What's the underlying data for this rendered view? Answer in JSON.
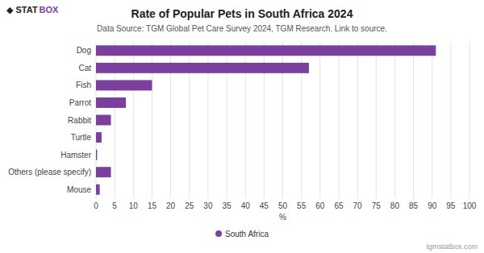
{
  "chart_data": {
    "type": "bar",
    "orientation": "horizontal",
    "title": "Rate of Popular Pets in South Africa 2024",
    "subtitle": "Data Source: TGM Global Pet Care Survey 2024, TGM Research. Link to source.",
    "categories": [
      "Dog",
      "Cat",
      "Fish",
      "Parrot",
      "Rabbit",
      "Turtle",
      "Hamster",
      "Others (please specify)",
      "Mouse"
    ],
    "series": [
      {
        "name": "South Africa",
        "color": "#7b3f9e",
        "values": [
          91,
          57,
          15,
          8,
          4,
          1.5,
          0.3,
          4,
          1
        ]
      }
    ],
    "x_label": "%",
    "xlim": [
      0,
      100
    ],
    "xticks": [
      0,
      5,
      10,
      15,
      20,
      25,
      30,
      35,
      40,
      45,
      50,
      55,
      60,
      65,
      70,
      75,
      80,
      85,
      90,
      95,
      100
    ],
    "grid": true,
    "legend": "bottom",
    "annotations": [
      "◆ STAT",
      "BOX",
      "tgmstatbox.com"
    ]
  }
}
